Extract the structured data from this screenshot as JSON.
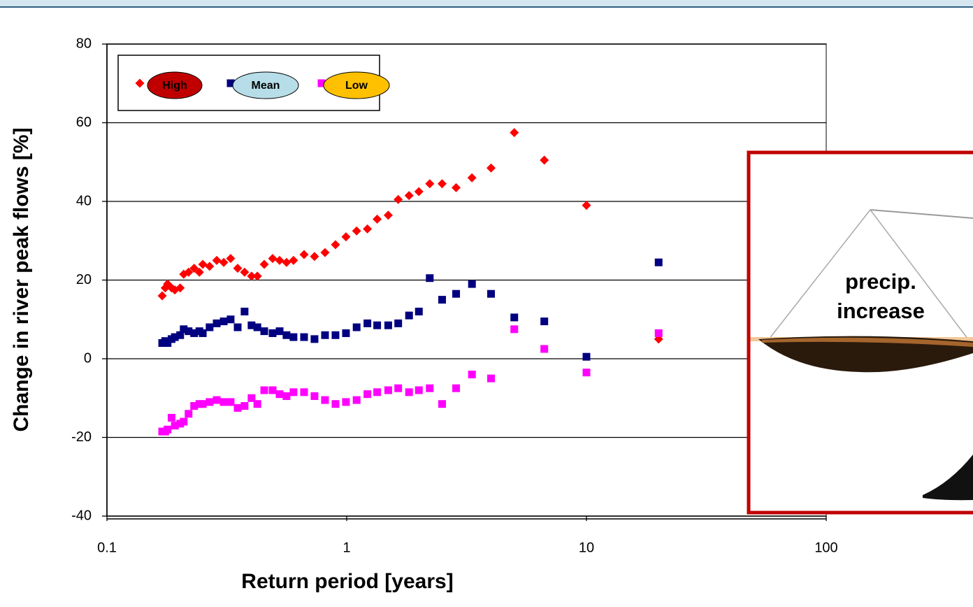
{
  "chart_data": {
    "type": "scatter",
    "xlabel": "Return period [years]",
    "ylabel": "Change in river peak flows [%]",
    "x": [
      0.17,
      0.175,
      0.179,
      0.186,
      0.192,
      0.202,
      0.209,
      0.219,
      0.231,
      0.243,
      0.251,
      0.268,
      0.287,
      0.307,
      0.328,
      0.351,
      0.375,
      0.401,
      0.424,
      0.453,
      0.491,
      0.525,
      0.561,
      0.6,
      0.664,
      0.734,
      0.812,
      0.898,
      0.993,
      1.1,
      1.22,
      1.34,
      1.49,
      1.64,
      1.82,
      2,
      2.22,
      2.5,
      2.86,
      3.33,
      4,
      5,
      6.67,
      10,
      20
    ],
    "series": [
      {
        "name": "High",
        "color": "#ff0000",
        "marker": "diamond",
        "values": [
          16,
          18,
          19,
          18,
          17.5,
          18,
          21.5,
          22,
          23,
          22,
          24,
          23.5,
          25,
          24.5,
          25.5,
          23,
          22,
          21,
          21,
          24,
          25.5,
          25,
          24.5,
          25,
          26.5,
          26,
          27,
          29,
          31,
          32.5,
          33,
          35.5,
          36.5,
          40.5,
          41.5,
          42.5,
          44.5,
          44.5,
          43.5,
          46,
          48.5,
          57.5,
          50.5,
          39,
          5
        ]
      },
      {
        "name": "Mean",
        "color": "#000080",
        "marker": "square",
        "values": [
          4,
          4.5,
          4,
          5,
          5.5,
          6,
          7.5,
          7,
          6.5,
          7,
          6.5,
          8,
          9,
          9.5,
          10,
          8,
          12,
          8.5,
          8,
          7,
          6.5,
          7,
          6,
          5.5,
          5.5,
          5,
          6,
          6,
          6.5,
          8,
          9,
          8.5,
          8.5,
          9,
          11,
          12,
          20.5,
          15,
          16.5,
          19,
          16.5,
          10.5,
          9.5,
          0.5,
          24.5
        ]
      },
      {
        "name": "Low",
        "color": "#ff00ff",
        "marker": "square",
        "values": [
          -18.5,
          -18.5,
          -18,
          -15,
          -17,
          -16.5,
          -16,
          -14,
          -12,
          -11.5,
          -11.5,
          -11,
          -10.5,
          -11,
          -11,
          -12.5,
          -12,
          -10,
          -11.5,
          -8,
          -8,
          -9,
          -9.5,
          -8.5,
          -8.5,
          -9.5,
          -10.5,
          -11.5,
          -11,
          -10.5,
          -9,
          -8.5,
          -8,
          -7.5,
          -8.5,
          -8,
          -7.5,
          -11.5,
          -7.5,
          -4,
          -5,
          7.5,
          2.5,
          -3.5,
          6.5
        ]
      }
    ],
    "xscale": "log",
    "xlim": [
      0.1,
      100
    ],
    "xticks": [
      0.1,
      1,
      10,
      100
    ],
    "ylim": [
      -40,
      80
    ],
    "yticks": [
      -40,
      -20,
      0,
      20,
      40,
      60,
      80
    ],
    "grid": true,
    "legend": "upper left",
    "annotation": "precip. increase"
  }
}
